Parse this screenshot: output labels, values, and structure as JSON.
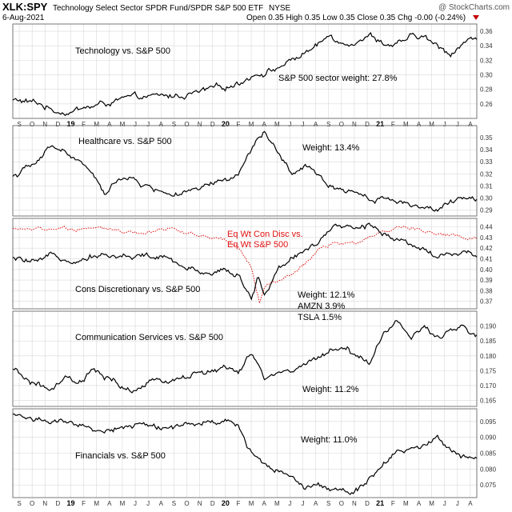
{
  "header": {
    "symbol": "XLK:SPY",
    "description": "Technology Select Sector SPDR Fund/SPDR S&P 500 ETF",
    "exchange": "NYSE",
    "date": "6-Aug-2021",
    "stats": "Open 0.35  High 0.35  Low 0.35  Close 0.35  Chg -0.00 (-0.24%)",
    "watermark": "@ StockCharts.com"
  },
  "colors": {
    "line": "#000000",
    "overlay": "#e01010",
    "grid": "#d8d8d8",
    "border": "#555555"
  },
  "months": [
    "S",
    "O",
    "N",
    "D",
    "19",
    "F",
    "M",
    "A",
    "M",
    "J",
    "J",
    "A",
    "S",
    "O",
    "N",
    "D",
    "20",
    "F",
    "M",
    "A",
    "M",
    "J",
    "J",
    "A",
    "S",
    "O",
    "N",
    "D",
    "21",
    "F",
    "M",
    "A",
    "M",
    "J",
    "J",
    "A"
  ],
  "chart_data": [
    {
      "type": "line",
      "name": "Technology vs. S&P 500",
      "label": "Technology vs. S&P 500",
      "note": "S&P 500 sector weight: 27.8%",
      "ylim": [
        0.24,
        0.37
      ],
      "yticks": [
        "0.26",
        "0.28",
        "0.30",
        "0.32",
        "0.34",
        "0.36"
      ],
      "yticks_num": [
        0.26,
        0.28,
        0.3,
        0.32,
        0.34,
        0.36
      ],
      "anchors": [
        [
          0,
          0.265
        ],
        [
          2,
          0.26
        ],
        [
          3,
          0.252
        ],
        [
          4,
          0.25
        ],
        [
          6,
          0.256
        ],
        [
          8,
          0.265
        ],
        [
          10,
          0.268
        ],
        [
          12,
          0.27
        ],
        [
          14,
          0.275
        ],
        [
          16,
          0.282
        ],
        [
          17,
          0.29
        ],
        [
          18,
          0.3
        ],
        [
          20,
          0.31
        ],
        [
          22,
          0.33
        ],
        [
          23,
          0.34
        ],
        [
          24,
          0.355
        ],
        [
          25,
          0.345
        ],
        [
          26,
          0.35
        ],
        [
          27,
          0.355
        ],
        [
          28,
          0.345
        ],
        [
          29,
          0.34
        ],
        [
          30,
          0.35
        ],
        [
          31,
          0.352
        ],
        [
          32,
          0.338
        ],
        [
          33,
          0.33
        ],
        [
          34,
          0.345
        ],
        [
          35,
          0.35
        ]
      ]
    },
    {
      "type": "line",
      "name": "Healthcare vs. S&P 500",
      "label": "Healthcare vs. S&P 500",
      "note": "Weight: 13.4%",
      "ylim": [
        0.285,
        0.36
      ],
      "yticks": [
        "0.29",
        "0.30",
        "0.31",
        "0.32",
        "0.33",
        "0.34",
        "0.35"
      ],
      "yticks_num": [
        0.29,
        0.3,
        0.31,
        0.32,
        0.33,
        0.34,
        0.35
      ],
      "anchors": [
        [
          0,
          0.318
        ],
        [
          2,
          0.33
        ],
        [
          3,
          0.345
        ],
        [
          4,
          0.338
        ],
        [
          5,
          0.33
        ],
        [
          6,
          0.32
        ],
        [
          7,
          0.3
        ],
        [
          8,
          0.318
        ],
        [
          9,
          0.315
        ],
        [
          10,
          0.31
        ],
        [
          12,
          0.303
        ],
        [
          14,
          0.305
        ],
        [
          15,
          0.31
        ],
        [
          16,
          0.314
        ],
        [
          17,
          0.318
        ],
        [
          18,
          0.34
        ],
        [
          19,
          0.355
        ],
        [
          20,
          0.335
        ],
        [
          21,
          0.32
        ],
        [
          22,
          0.325
        ],
        [
          23,
          0.318
        ],
        [
          24,
          0.31
        ],
        [
          26,
          0.305
        ],
        [
          27,
          0.3
        ],
        [
          28,
          0.3
        ],
        [
          29,
          0.298
        ],
        [
          30,
          0.295
        ],
        [
          31,
          0.293
        ],
        [
          32,
          0.29
        ],
        [
          33,
          0.295
        ],
        [
          34,
          0.298
        ],
        [
          35,
          0.3
        ]
      ]
    },
    {
      "type": "line",
      "name": "Cons Discretionary vs. S&P 500",
      "label": "Cons Discretionary vs. S&P 500",
      "overlay_label_1": "Eq Wt Con Disc vs.",
      "overlay_label_2": "Eq Wt S&P 500",
      "note_lines": [
        "Weight: 12.1%",
        "AMZN 3.9%",
        "TSLA 1.5%"
      ],
      "ylim": [
        0.363,
        0.448
      ],
      "yticks": [
        "0.37",
        "0.38",
        "0.39",
        "0.40",
        "0.41",
        "0.42",
        "0.43",
        "0.44"
      ],
      "yticks_num": [
        0.37,
        0.38,
        0.39,
        0.4,
        0.41,
        0.42,
        0.43,
        0.44
      ],
      "anchors": [
        [
          0,
          0.41
        ],
        [
          2,
          0.405
        ],
        [
          3,
          0.412
        ],
        [
          5,
          0.41
        ],
        [
          6,
          0.415
        ],
        [
          8,
          0.412
        ],
        [
          10,
          0.413
        ],
        [
          12,
          0.408
        ],
        [
          13,
          0.4
        ],
        [
          14,
          0.398
        ],
        [
          15,
          0.398
        ],
        [
          16,
          0.402
        ],
        [
          17,
          0.396
        ],
        [
          18,
          0.37
        ],
        [
          18.5,
          0.395
        ],
        [
          19,
          0.375
        ],
        [
          20,
          0.4
        ],
        [
          21,
          0.41
        ],
        [
          22,
          0.42
        ],
        [
          23,
          0.425
        ],
        [
          24,
          0.435
        ],
        [
          25,
          0.44
        ],
        [
          26,
          0.438
        ],
        [
          27,
          0.442
        ],
        [
          28,
          0.435
        ],
        [
          29,
          0.43
        ],
        [
          30,
          0.425
        ],
        [
          31,
          0.42
        ],
        [
          32,
          0.412
        ],
        [
          33,
          0.415
        ],
        [
          34,
          0.418
        ],
        [
          35,
          0.41
        ]
      ],
      "overlay_anchors": [
        [
          0,
          0.438
        ],
        [
          4,
          0.438
        ],
        [
          6,
          0.44
        ],
        [
          8,
          0.436
        ],
        [
          10,
          0.434
        ],
        [
          12,
          0.438
        ],
        [
          14,
          0.432
        ],
        [
          16,
          0.43
        ],
        [
          17,
          0.42
        ],
        [
          18,
          0.4
        ],
        [
          18.6,
          0.368
        ],
        [
          19,
          0.385
        ],
        [
          20,
          0.39
        ],
        [
          21,
          0.395
        ],
        [
          22,
          0.405
        ],
        [
          23,
          0.42
        ],
        [
          24,
          0.425
        ],
        [
          26,
          0.425
        ],
        [
          27,
          0.43
        ],
        [
          28,
          0.438
        ],
        [
          29,
          0.44
        ],
        [
          30,
          0.438
        ],
        [
          31,
          0.436
        ],
        [
          32,
          0.434
        ],
        [
          33,
          0.432
        ],
        [
          34,
          0.43
        ],
        [
          35,
          0.43
        ]
      ]
    },
    {
      "type": "line",
      "name": "Communication Services vs. S&P 500",
      "label": "Communication Services vs. S&P 500",
      "note": "Weight: 11.2%",
      "ylim": [
        0.163,
        0.195
      ],
      "yticks": [
        "0.165",
        "0.170",
        "0.175",
        "0.180",
        "0.185",
        "0.190"
      ],
      "yticks_num": [
        0.165,
        0.17,
        0.175,
        0.18,
        0.185,
        0.19
      ],
      "anchors": [
        [
          0,
          0.175
        ],
        [
          1,
          0.172
        ],
        [
          2,
          0.17
        ],
        [
          3,
          0.168
        ],
        [
          4,
          0.172
        ],
        [
          5,
          0.17
        ],
        [
          6,
          0.175
        ],
        [
          7,
          0.172
        ],
        [
          8,
          0.17
        ],
        [
          9,
          0.168
        ],
        [
          10,
          0.17
        ],
        [
          12,
          0.172
        ],
        [
          14,
          0.174
        ],
        [
          16,
          0.176
        ],
        [
          17,
          0.174
        ],
        [
          18,
          0.18
        ],
        [
          19,
          0.172
        ],
        [
          20,
          0.174
        ],
        [
          22,
          0.176
        ],
        [
          23,
          0.18
        ],
        [
          24,
          0.182
        ],
        [
          25,
          0.183
        ],
        [
          26,
          0.18
        ],
        [
          27,
          0.178
        ],
        [
          28,
          0.188
        ],
        [
          29,
          0.192
        ],
        [
          30,
          0.186
        ],
        [
          31,
          0.188
        ],
        [
          32,
          0.187
        ],
        [
          33,
          0.188
        ],
        [
          34,
          0.19
        ],
        [
          35,
          0.186
        ]
      ]
    },
    {
      "type": "line",
      "name": "Financials vs. S&P 500",
      "label": "Financials vs. S&P 500",
      "note": "Weight: 11.0%",
      "ylim": [
        0.071,
        0.099
      ],
      "yticks": [
        "0.075",
        "0.080",
        "0.085",
        "0.090",
        "0.095"
      ],
      "yticks_num": [
        0.075,
        0.08,
        0.085,
        0.09,
        0.095
      ],
      "anchors": [
        [
          0,
          0.097
        ],
        [
          2,
          0.096
        ],
        [
          3,
          0.095
        ],
        [
          4,
          0.094
        ],
        [
          5,
          0.093
        ],
        [
          6,
          0.092
        ],
        [
          8,
          0.093
        ],
        [
          10,
          0.094
        ],
        [
          12,
          0.093
        ],
        [
          14,
          0.094
        ],
        [
          16,
          0.095
        ],
        [
          17,
          0.093
        ],
        [
          18,
          0.085
        ],
        [
          19,
          0.082
        ],
        [
          20,
          0.08
        ],
        [
          21,
          0.078
        ],
        [
          22,
          0.075
        ],
        [
          23,
          0.076
        ],
        [
          24,
          0.074
        ],
        [
          25,
          0.073
        ],
        [
          26,
          0.074
        ],
        [
          27,
          0.078
        ],
        [
          28,
          0.082
        ],
        [
          29,
          0.087
        ],
        [
          30,
          0.086
        ],
        [
          31,
          0.087
        ],
        [
          32,
          0.09
        ],
        [
          33,
          0.087
        ],
        [
          34,
          0.084
        ],
        [
          35,
          0.085
        ]
      ]
    }
  ]
}
